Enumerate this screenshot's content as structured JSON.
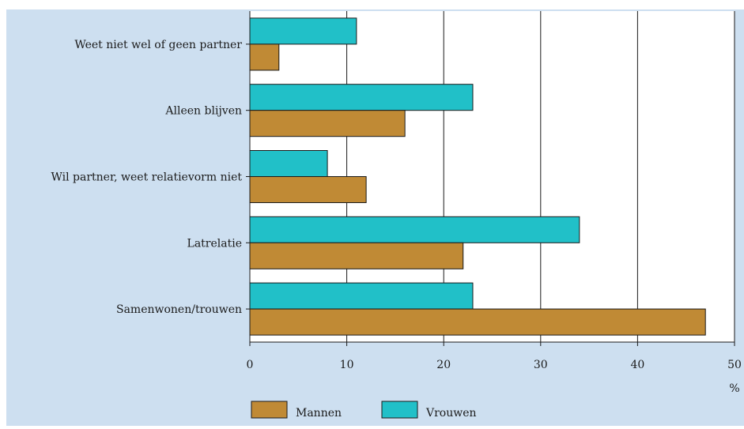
{
  "chart_data": {
    "type": "bar",
    "orientation": "horizontal",
    "categories": [
      "Weet niet wel of geen partner",
      "Alleen blijven",
      "Wil partner, weet relatievorm niet",
      "Latrelatie",
      "Samenwonen/trouwen"
    ],
    "series": [
      {
        "name": "Vrouwen",
        "values": [
          11,
          23,
          8,
          34,
          23
        ],
        "color": "#21c0c8"
      },
      {
        "name": "Mannen",
        "values": [
          3,
          16,
          12,
          22,
          47
        ],
        "color": "#c08a35"
      }
    ],
    "xlim": [
      0,
      50
    ],
    "xticks": [
      0,
      10,
      20,
      30,
      40,
      50
    ],
    "xlabel": "%",
    "grid": true,
    "legend": {
      "placement": "bottom-left",
      "items": [
        {
          "name": "Mannen",
          "color": "#c08a35"
        },
        {
          "name": "Vrouwen",
          "color": "#21c0c8"
        }
      ]
    },
    "background": "#cddff0",
    "plot_background": "#ffffff"
  }
}
